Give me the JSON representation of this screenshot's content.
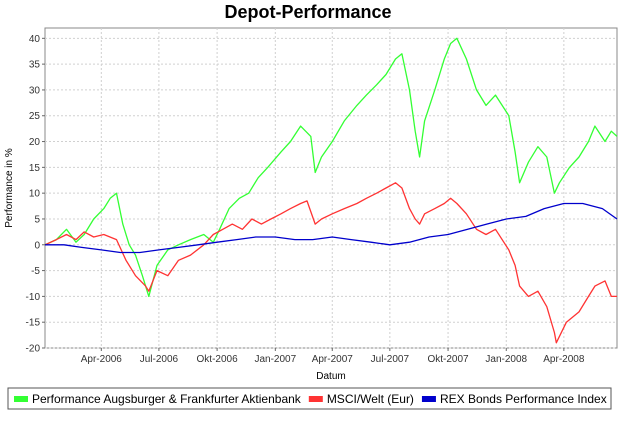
{
  "chart_data": {
    "type": "line",
    "title": "Depot-Performance",
    "xlabel": "Datum",
    "ylabel": "Performance in %",
    "ylim": [
      -20,
      42
    ],
    "yticks": [
      40,
      35,
      30,
      25,
      20,
      15,
      10,
      5,
      0,
      -5,
      -10,
      -15,
      -20
    ],
    "x_range": [
      "2006-01-02",
      "2008-06-24"
    ],
    "xticks": [
      {
        "date": "2006-04-01",
        "label": "Apr-2006"
      },
      {
        "date": "2006-07-01",
        "label": "Jul-2006"
      },
      {
        "date": "2006-10-01",
        "label": "Okt-2006"
      },
      {
        "date": "2007-01-01",
        "label": "Jan-2007"
      },
      {
        "date": "2007-04-01",
        "label": "Apr-2007"
      },
      {
        "date": "2007-07-01",
        "label": "Jul-2007"
      },
      {
        "date": "2007-10-01",
        "label": "Okt-2007"
      },
      {
        "date": "2008-01-01",
        "label": "Jan-2008"
      },
      {
        "date": "2008-04-01",
        "label": "Apr-2008"
      }
    ],
    "grid": true,
    "legend_position": "bottom",
    "series": [
      {
        "name": "Performance Augsburger & Frankfurter Aktienbank",
        "color": "#33ff33",
        "points": [
          [
            "2006-01-02",
            0
          ],
          [
            "2006-01-20",
            1
          ],
          [
            "2006-02-05",
            3
          ],
          [
            "2006-02-20",
            0.5
          ],
          [
            "2006-03-05",
            2
          ],
          [
            "2006-03-20",
            5
          ],
          [
            "2006-04-05",
            7
          ],
          [
            "2006-04-15",
            9
          ],
          [
            "2006-04-25",
            10
          ],
          [
            "2006-05-05",
            4
          ],
          [
            "2006-05-15",
            0
          ],
          [
            "2006-05-25",
            -2
          ],
          [
            "2006-06-05",
            -6
          ],
          [
            "2006-06-15",
            -10
          ],
          [
            "2006-06-28",
            -4
          ],
          [
            "2006-07-15",
            -1
          ],
          [
            "2006-08-01",
            0
          ],
          [
            "2006-08-20",
            1
          ],
          [
            "2006-09-10",
            2
          ],
          [
            "2006-09-25",
            0.5
          ],
          [
            "2006-10-05",
            3
          ],
          [
            "2006-10-20",
            7
          ],
          [
            "2006-11-05",
            9
          ],
          [
            "2006-11-20",
            10
          ],
          [
            "2006-12-05",
            13
          ],
          [
            "2006-12-20",
            15
          ],
          [
            "2007-01-10",
            18
          ],
          [
            "2007-01-25",
            20
          ],
          [
            "2007-02-10",
            23
          ],
          [
            "2007-02-26",
            21
          ],
          [
            "2007-03-05",
            14
          ],
          [
            "2007-03-15",
            17
          ],
          [
            "2007-04-01",
            20
          ],
          [
            "2007-04-20",
            24
          ],
          [
            "2007-05-10",
            27
          ],
          [
            "2007-05-25",
            29
          ],
          [
            "2007-06-10",
            31
          ],
          [
            "2007-06-25",
            33
          ],
          [
            "2007-07-10",
            36
          ],
          [
            "2007-07-20",
            37
          ],
          [
            "2007-08-01",
            30
          ],
          [
            "2007-08-10",
            22
          ],
          [
            "2007-08-17",
            17
          ],
          [
            "2007-08-25",
            24
          ],
          [
            "2007-09-10",
            30
          ],
          [
            "2007-09-25",
            36
          ],
          [
            "2007-10-05",
            39
          ],
          [
            "2007-10-15",
            40
          ],
          [
            "2007-10-30",
            36
          ],
          [
            "2007-11-15",
            30
          ],
          [
            "2007-11-30",
            27
          ],
          [
            "2007-12-15",
            29
          ],
          [
            "2008-01-05",
            25
          ],
          [
            "2008-01-15",
            18
          ],
          [
            "2008-01-22",
            12
          ],
          [
            "2008-02-05",
            16
          ],
          [
            "2008-02-20",
            19
          ],
          [
            "2008-03-05",
            17
          ],
          [
            "2008-03-17",
            10
          ],
          [
            "2008-03-25",
            12
          ],
          [
            "2008-04-10",
            15
          ],
          [
            "2008-04-25",
            17
          ],
          [
            "2008-05-10",
            20
          ],
          [
            "2008-05-20",
            23
          ],
          [
            "2008-06-05",
            20
          ],
          [
            "2008-06-15",
            22
          ],
          [
            "2008-06-24",
            21
          ]
        ]
      },
      {
        "name": "MSCI/Welt (Eur)",
        "color": "#ff3333",
        "points": [
          [
            "2006-01-02",
            0
          ],
          [
            "2006-01-20",
            1
          ],
          [
            "2006-02-05",
            2
          ],
          [
            "2006-02-20",
            1
          ],
          [
            "2006-03-05",
            2.5
          ],
          [
            "2006-03-20",
            1.5
          ],
          [
            "2006-04-05",
            2
          ],
          [
            "2006-04-25",
            1
          ],
          [
            "2006-05-10",
            -3
          ],
          [
            "2006-05-25",
            -6
          ],
          [
            "2006-06-10",
            -8
          ],
          [
            "2006-06-15",
            -9
          ],
          [
            "2006-06-28",
            -5
          ],
          [
            "2006-07-15",
            -6
          ],
          [
            "2006-08-01",
            -3
          ],
          [
            "2006-08-20",
            -2
          ],
          [
            "2006-09-10",
            0
          ],
          [
            "2006-09-25",
            2
          ],
          [
            "2006-10-10",
            3
          ],
          [
            "2006-10-25",
            4
          ],
          [
            "2006-11-10",
            3
          ],
          [
            "2006-11-25",
            5
          ],
          [
            "2006-12-10",
            4
          ],
          [
            "2006-12-25",
            5
          ],
          [
            "2007-01-10",
            6
          ],
          [
            "2007-01-25",
            7
          ],
          [
            "2007-02-10",
            8
          ],
          [
            "2007-02-20",
            8.5
          ],
          [
            "2007-03-05",
            4
          ],
          [
            "2007-03-15",
            5
          ],
          [
            "2007-04-01",
            6
          ],
          [
            "2007-04-20",
            7
          ],
          [
            "2007-05-10",
            8
          ],
          [
            "2007-05-25",
            9
          ],
          [
            "2007-06-10",
            10
          ],
          [
            "2007-06-25",
            11
          ],
          [
            "2007-07-10",
            12
          ],
          [
            "2007-07-20",
            11
          ],
          [
            "2007-08-01",
            7
          ],
          [
            "2007-08-10",
            5
          ],
          [
            "2007-08-17",
            4
          ],
          [
            "2007-08-25",
            6
          ],
          [
            "2007-09-10",
            7
          ],
          [
            "2007-09-25",
            8
          ],
          [
            "2007-10-05",
            9
          ],
          [
            "2007-10-15",
            8
          ],
          [
            "2007-10-30",
            6
          ],
          [
            "2007-11-15",
            3
          ],
          [
            "2007-11-30",
            2
          ],
          [
            "2007-12-15",
            3
          ],
          [
            "2008-01-05",
            -1
          ],
          [
            "2008-01-15",
            -4
          ],
          [
            "2008-01-22",
            -8
          ],
          [
            "2008-02-05",
            -10
          ],
          [
            "2008-02-20",
            -9
          ],
          [
            "2008-03-05",
            -12
          ],
          [
            "2008-03-17",
            -17
          ],
          [
            "2008-03-20",
            -19
          ],
          [
            "2008-04-05",
            -15
          ],
          [
            "2008-04-25",
            -13
          ],
          [
            "2008-05-10",
            -10
          ],
          [
            "2008-05-20",
            -8
          ],
          [
            "2008-06-05",
            -7
          ],
          [
            "2008-06-15",
            -10
          ],
          [
            "2008-06-24",
            -10
          ]
        ]
      },
      {
        "name": "REX Bonds Performance Index",
        "color": "#0000cc",
        "points": [
          [
            "2006-01-02",
            0
          ],
          [
            "2006-02-01",
            0
          ],
          [
            "2006-03-01",
            -0.5
          ],
          [
            "2006-04-01",
            -1
          ],
          [
            "2006-05-01",
            -1.5
          ],
          [
            "2006-06-01",
            -1.5
          ],
          [
            "2006-07-01",
            -1
          ],
          [
            "2006-08-01",
            -0.5
          ],
          [
            "2006-09-01",
            0
          ],
          [
            "2006-10-01",
            0.5
          ],
          [
            "2006-11-01",
            1
          ],
          [
            "2006-12-01",
            1.5
          ],
          [
            "2007-01-01",
            1.5
          ],
          [
            "2007-02-01",
            1
          ],
          [
            "2007-03-01",
            1
          ],
          [
            "2007-04-01",
            1.5
          ],
          [
            "2007-05-01",
            1
          ],
          [
            "2007-06-01",
            0.5
          ],
          [
            "2007-07-01",
            0
          ],
          [
            "2007-08-01",
            0.5
          ],
          [
            "2007-09-01",
            1.5
          ],
          [
            "2007-10-01",
            2
          ],
          [
            "2007-11-01",
            3
          ],
          [
            "2007-12-01",
            4
          ],
          [
            "2008-01-01",
            5
          ],
          [
            "2008-02-01",
            5.5
          ],
          [
            "2008-03-01",
            7
          ],
          [
            "2008-04-01",
            8
          ],
          [
            "2008-05-01",
            8
          ],
          [
            "2008-06-01",
            7
          ],
          [
            "2008-06-24",
            5
          ]
        ]
      }
    ]
  }
}
